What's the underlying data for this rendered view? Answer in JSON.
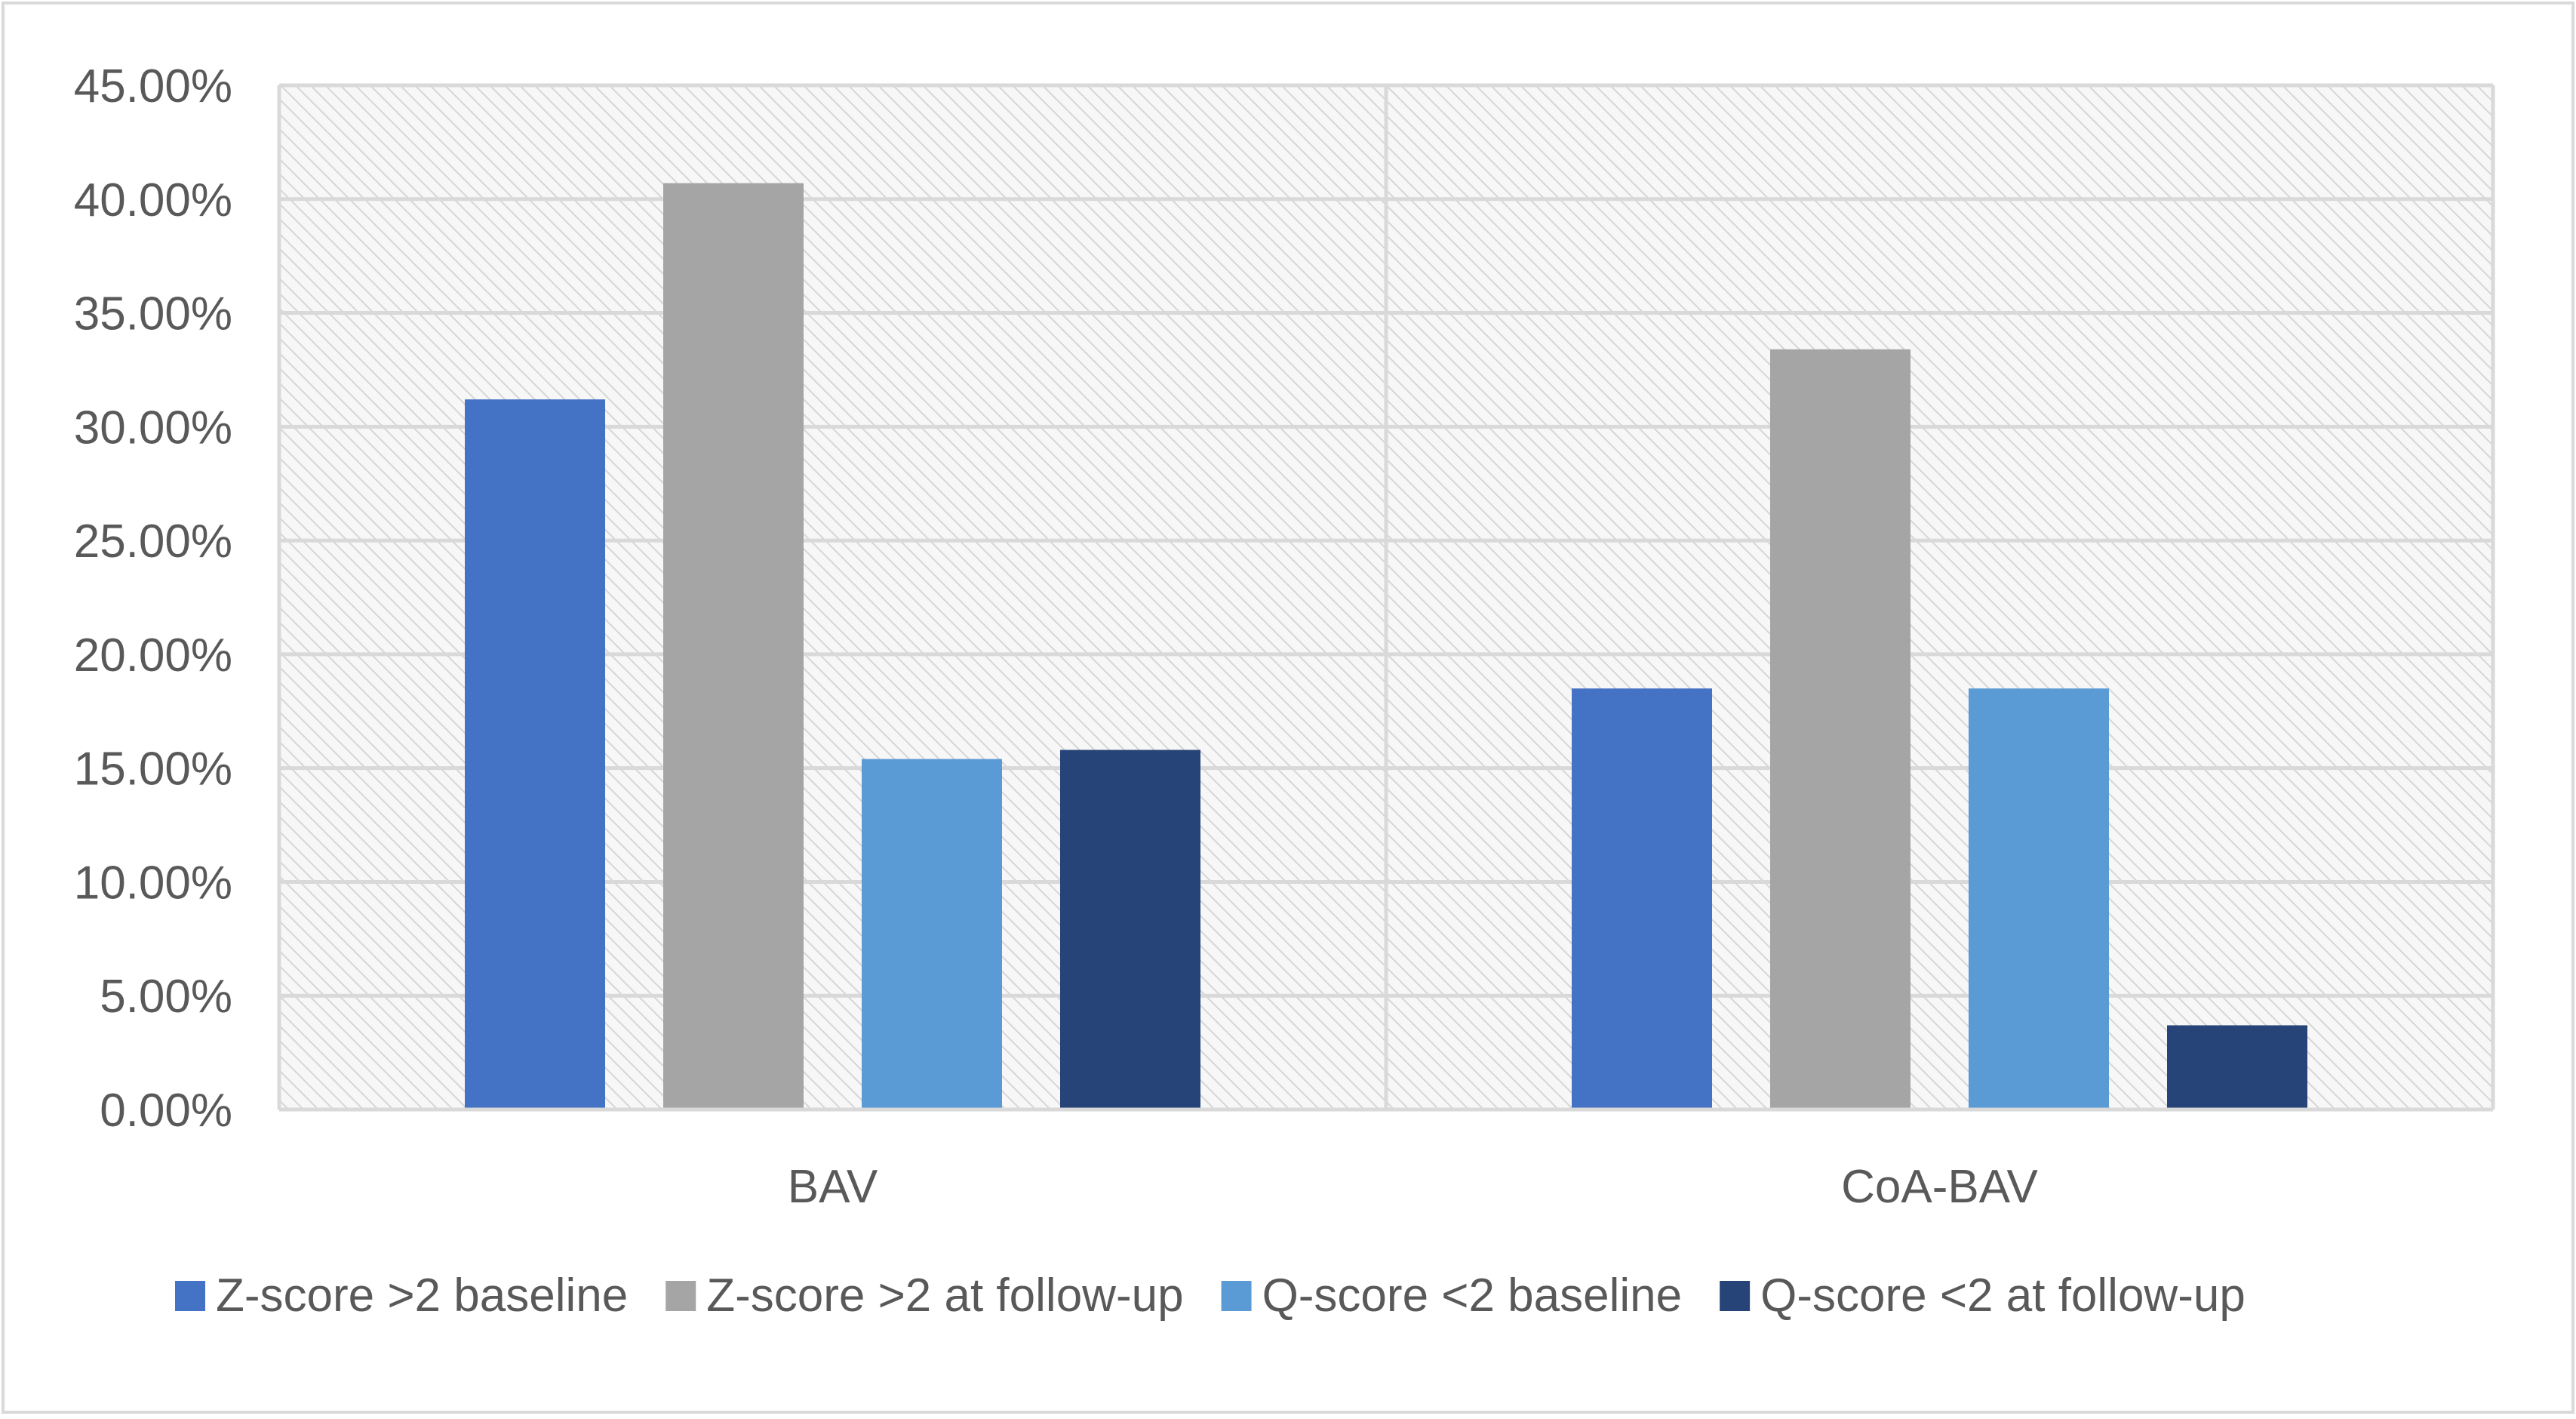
{
  "chart_data": {
    "type": "bar",
    "title": "",
    "xlabel": "",
    "ylabel": "",
    "categories": [
      "BAV",
      "CoA-BAV"
    ],
    "series": [
      {
        "name": "Z-score >2 baseline",
        "color": "#4472c4",
        "values": [
          31.2,
          18.5
        ]
      },
      {
        "name": "Z-score >2 at follow-up",
        "color": "#a5a5a5",
        "values": [
          40.7,
          33.4
        ]
      },
      {
        "name": "Q-score <2 baseline",
        "color": "#5b9bd5",
        "values": [
          15.4,
          18.5
        ]
      },
      {
        "name": "Q-score <2 at follow-up",
        "color": "#264478",
        "values": [
          15.8,
          3.7
        ]
      }
    ],
    "ylim": [
      0,
      45
    ],
    "yticks": [
      "0.00%",
      "5.00%",
      "10.00%",
      "15.00%",
      "20.00%",
      "25.00%",
      "30.00%",
      "35.00%",
      "40.00%",
      "45.00%"
    ],
    "grid": true,
    "legend": "bottom"
  }
}
